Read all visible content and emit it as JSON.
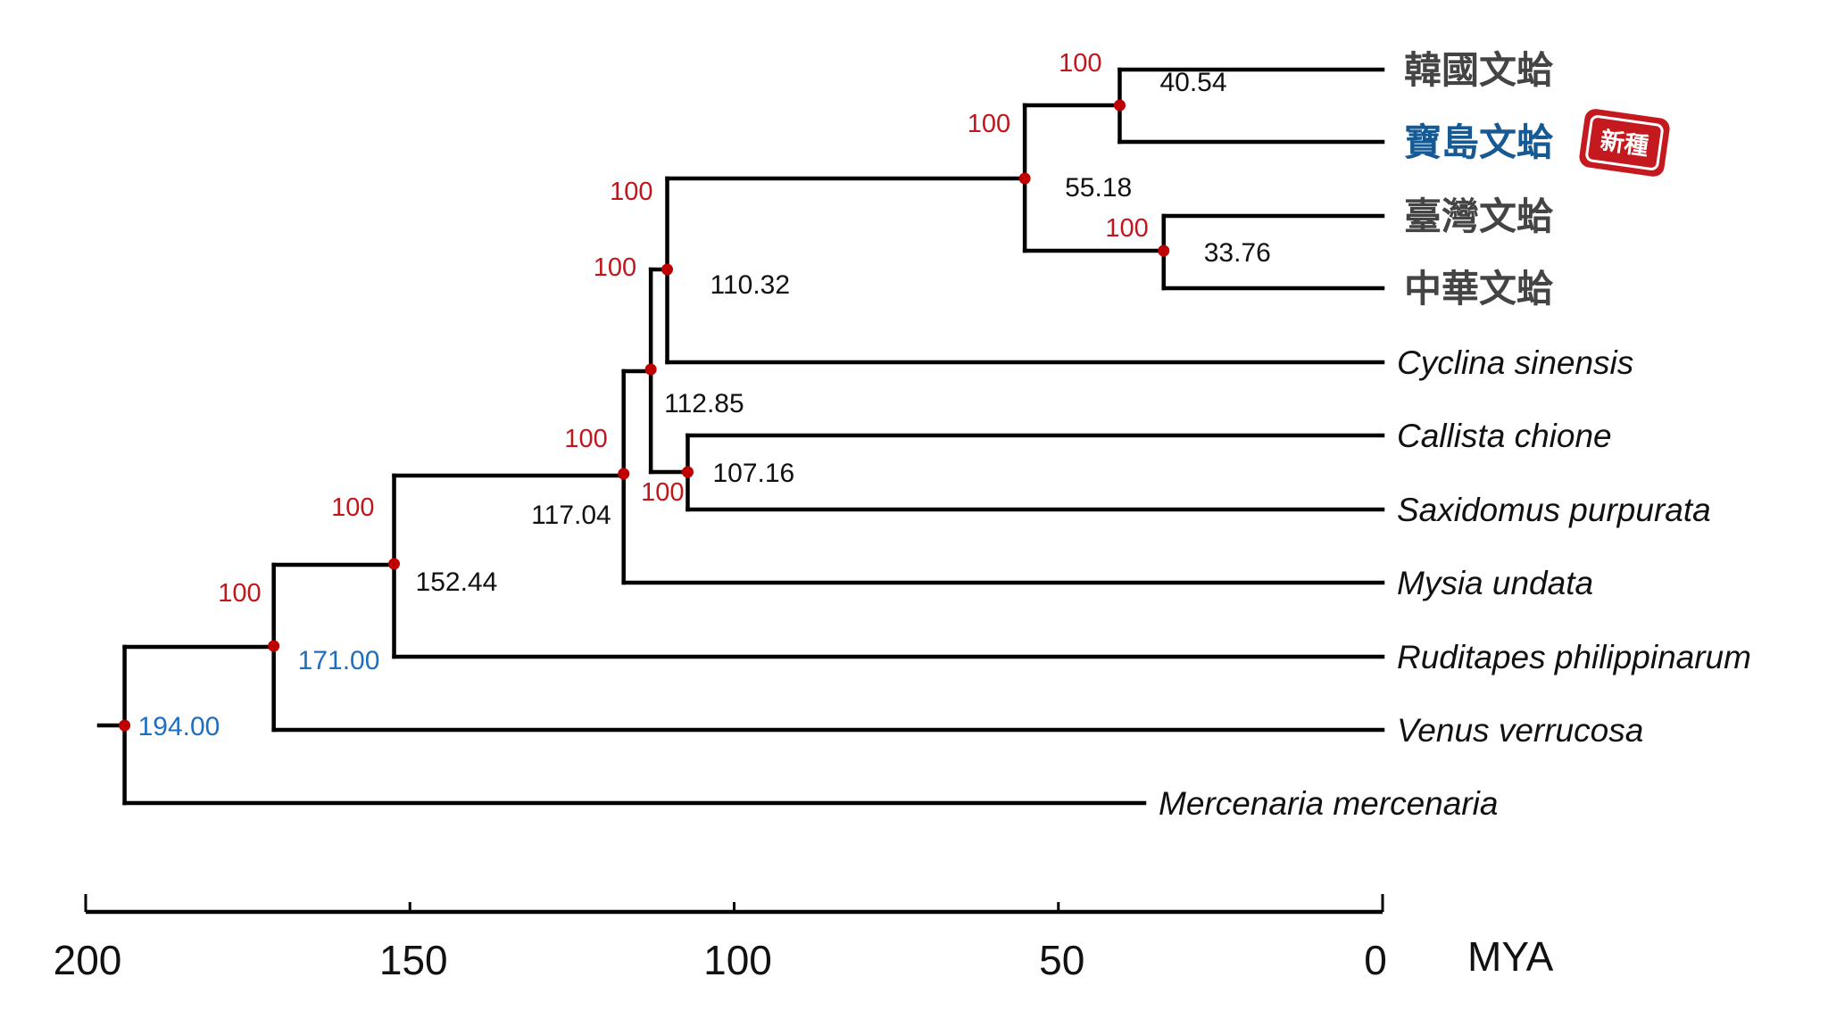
{
  "chart_data": {
    "type": "tree",
    "title": "",
    "axis": {
      "unit_label": "MYA",
      "range": [
        200,
        0
      ],
      "ticks": [
        200,
        150,
        100,
        50,
        0
      ],
      "tick_labels": [
        "200",
        "150",
        "100",
        "50",
        "0"
      ]
    },
    "tips": [
      {
        "id": "t1",
        "label": "韓國文蛤",
        "script": "zh",
        "highlight": false
      },
      {
        "id": "t2",
        "label": "寶島文蛤",
        "script": "zh",
        "highlight": true,
        "badge": "新種"
      },
      {
        "id": "t3",
        "label": "臺灣文蛤",
        "script": "zh",
        "highlight": false
      },
      {
        "id": "t4",
        "label": "中華文蛤",
        "script": "zh",
        "highlight": false
      },
      {
        "id": "t5",
        "label": "Cyclina sinensis",
        "script": "latin",
        "highlight": false
      },
      {
        "id": "t6",
        "label": "Callista chione",
        "script": "latin",
        "highlight": false
      },
      {
        "id": "t7",
        "label": "Saxidomus purpurata",
        "script": "latin",
        "highlight": false
      },
      {
        "id": "t8",
        "label": "Mysia undata",
        "script": "latin",
        "highlight": false
      },
      {
        "id": "t9",
        "label": "Ruditapes philippinarum",
        "script": "latin",
        "highlight": false
      },
      {
        "id": "t10",
        "label": "Venus verrucosa",
        "script": "latin",
        "highlight": false
      },
      {
        "id": "t11",
        "label": "Mercenaria mercenaria",
        "script": "latin",
        "highlight": false
      }
    ],
    "nodes": [
      {
        "id": "n1",
        "age": 40.54,
        "age_label": "40.54",
        "support": "100",
        "children": [
          "t1",
          "t2"
        ]
      },
      {
        "id": "n2",
        "age": 33.76,
        "age_label": "33.76",
        "support": "100",
        "children": [
          "t3",
          "t4"
        ]
      },
      {
        "id": "n3",
        "age": 55.18,
        "age_label": "55.18",
        "support": "100",
        "children": [
          "n1",
          "n2"
        ]
      },
      {
        "id": "n4",
        "age": 110.32,
        "age_label": "110.32",
        "support": "100",
        "children": [
          "n3",
          "t5"
        ]
      },
      {
        "id": "n5",
        "age": 107.16,
        "age_label": "107.16",
        "support": "100",
        "children": [
          "t6",
          "t7"
        ]
      },
      {
        "id": "n6",
        "age": 112.85,
        "age_label": "112.85",
        "support": "100",
        "children": [
          "n4",
          "n5"
        ]
      },
      {
        "id": "n7",
        "age": 117.04,
        "age_label": "117.04",
        "support": "100",
        "children": [
          "n6",
          "t8"
        ]
      },
      {
        "id": "n8",
        "age": 152.44,
        "age_label": "152.44",
        "support": "100",
        "children": [
          "n7",
          "t9"
        ]
      },
      {
        "id": "n9",
        "age": 171.0,
        "age_label": "171.00",
        "support": "100",
        "children": [
          "n8",
          "t10"
        ],
        "label_color": "#1f6fbf"
      },
      {
        "id": "n10",
        "age": 194.0,
        "age_label": "194.00",
        "support": "",
        "children": [
          "n9",
          "t11"
        ],
        "label_color": "#1f6fbf"
      }
    ],
    "colors": {
      "support": "#c0161c",
      "node_dot": "#c00000",
      "calibration_label": "#1f6fbf",
      "highlight_tip": "#155a94",
      "badge": "#c41a1f"
    }
  }
}
